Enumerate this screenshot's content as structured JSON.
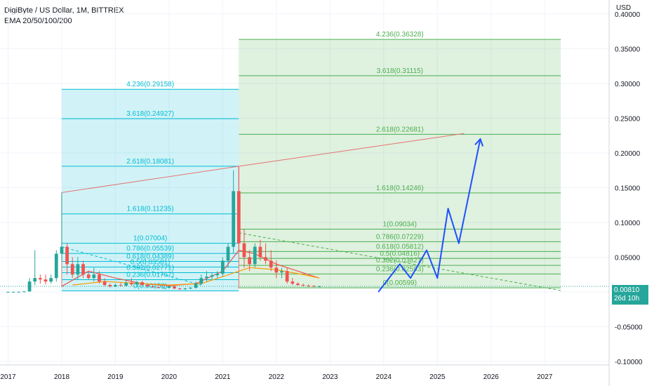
{
  "header": {
    "title": "DigiByte / US Dollar, 1M, BITTREX",
    "indicator": "EMA 20/50/100/200"
  },
  "axis": {
    "currency": "USD"
  },
  "price_badge": {
    "price": "0.00810",
    "countdown": "26d 10h"
  },
  "colors": {
    "bull": "#26a69a",
    "bear": "#ef5350",
    "fib_cyan": "#00bcd4",
    "fib_green": "#4caf50",
    "trend_line": "#e57373",
    "drawing_blue": "#1e50ff",
    "ema_orange": "#ff7043"
  },
  "chart_data": {
    "type": "candlestick",
    "title": "DigiByte / US Dollar, 1M, BITTREX",
    "ylabel": "USD",
    "ylim": [
      -0.105,
      0.42
    ],
    "xlim": [
      2016.85,
      2028.2
    ],
    "x_ticks": [
      "2017",
      "2018",
      "2019",
      "2020",
      "2021",
      "2022",
      "2023",
      "2024",
      "2025",
      "2026",
      "2027"
    ],
    "y_ticks": [
      "0.40000",
      "0.35000",
      "0.30000",
      "0.25000",
      "0.20000",
      "0.15000",
      "0.10000",
      "0.05000",
      "0.00000",
      "-0.05000",
      "-0.10000"
    ],
    "candles": [
      {
        "t": 2017.0,
        "o": 0.0002,
        "h": 0.0003,
        "l": 0.0001,
        "c": 0.0002
      },
      {
        "t": 2017.1,
        "o": 0.0002,
        "h": 0.0003,
        "l": 0.0001,
        "c": 0.0002
      },
      {
        "t": 2017.2,
        "o": 0.0002,
        "h": 0.0004,
        "l": 0.0001,
        "c": 0.0003
      },
      {
        "t": 2017.3,
        "o": 0.0003,
        "h": 0.0008,
        "l": 0.0002,
        "c": 0.0007
      },
      {
        "t": 2017.4,
        "o": 0.0007,
        "h": 0.02,
        "l": 0.0006,
        "c": 0.015
      },
      {
        "t": 2017.5,
        "o": 0.015,
        "h": 0.06,
        "l": 0.01,
        "c": 0.02
      },
      {
        "t": 2017.6,
        "o": 0.02,
        "h": 0.025,
        "l": 0.012,
        "c": 0.018
      },
      {
        "t": 2017.7,
        "o": 0.018,
        "h": 0.025,
        "l": 0.011,
        "c": 0.015
      },
      {
        "t": 2017.8,
        "o": 0.015,
        "h": 0.025,
        "l": 0.012,
        "c": 0.02
      },
      {
        "t": 2017.9,
        "o": 0.02,
        "h": 0.06,
        "l": 0.015,
        "c": 0.055
      },
      {
        "t": 2018.0,
        "o": 0.055,
        "h": 0.143,
        "l": 0.045,
        "c": 0.065
      },
      {
        "t": 2018.1,
        "o": 0.065,
        "h": 0.07,
        "l": 0.025,
        "c": 0.04
      },
      {
        "t": 2018.2,
        "o": 0.04,
        "h": 0.05,
        "l": 0.02,
        "c": 0.025
      },
      {
        "t": 2018.3,
        "o": 0.025,
        "h": 0.05,
        "l": 0.018,
        "c": 0.04
      },
      {
        "t": 2018.4,
        "o": 0.04,
        "h": 0.045,
        "l": 0.02,
        "c": 0.025
      },
      {
        "t": 2018.5,
        "o": 0.025,
        "h": 0.03,
        "l": 0.018,
        "c": 0.02
      },
      {
        "t": 2018.6,
        "o": 0.02,
        "h": 0.035,
        "l": 0.015,
        "c": 0.025
      },
      {
        "t": 2018.7,
        "o": 0.025,
        "h": 0.03,
        "l": 0.012,
        "c": 0.015
      },
      {
        "t": 2018.8,
        "o": 0.015,
        "h": 0.02,
        "l": 0.008,
        "c": 0.01
      },
      {
        "t": 2018.9,
        "o": 0.01,
        "h": 0.012,
        "l": 0.006,
        "c": 0.008
      },
      {
        "t": 2019.0,
        "o": 0.008,
        "h": 0.012,
        "l": 0.007,
        "c": 0.01
      },
      {
        "t": 2019.1,
        "o": 0.01,
        "h": 0.013,
        "l": 0.008,
        "c": 0.009
      },
      {
        "t": 2019.2,
        "o": 0.009,
        "h": 0.016,
        "l": 0.008,
        "c": 0.013
      },
      {
        "t": 2019.3,
        "o": 0.013,
        "h": 0.02,
        "l": 0.009,
        "c": 0.011
      },
      {
        "t": 2019.4,
        "o": 0.011,
        "h": 0.016,
        "l": 0.009,
        "c": 0.014
      },
      {
        "t": 2019.5,
        "o": 0.014,
        "h": 0.016,
        "l": 0.009,
        "c": 0.01
      },
      {
        "t": 2019.6,
        "o": 0.01,
        "h": 0.011,
        "l": 0.007,
        "c": 0.008
      },
      {
        "t": 2019.7,
        "o": 0.008,
        "h": 0.009,
        "l": 0.006,
        "c": 0.007
      },
      {
        "t": 2019.8,
        "o": 0.007,
        "h": 0.008,
        "l": 0.005,
        "c": 0.006
      },
      {
        "t": 2019.9,
        "o": 0.006,
        "h": 0.007,
        "l": 0.005,
        "c": 0.006
      },
      {
        "t": 2020.0,
        "o": 0.006,
        "h": 0.009,
        "l": 0.005,
        "c": 0.008
      },
      {
        "t": 2020.1,
        "o": 0.008,
        "h": 0.009,
        "l": 0.004,
        "c": 0.005
      },
      {
        "t": 2020.2,
        "o": 0.005,
        "h": 0.006,
        "l": 0.003,
        "c": 0.004
      },
      {
        "t": 2020.3,
        "o": 0.004,
        "h": 0.006,
        "l": 0.003,
        "c": 0.005
      },
      {
        "t": 2020.4,
        "o": 0.005,
        "h": 0.007,
        "l": 0.004,
        "c": 0.006
      },
      {
        "t": 2020.5,
        "o": 0.006,
        "h": 0.015,
        "l": 0.005,
        "c": 0.012
      },
      {
        "t": 2020.6,
        "o": 0.012,
        "h": 0.025,
        "l": 0.01,
        "c": 0.02
      },
      {
        "t": 2020.7,
        "o": 0.02,
        "h": 0.03,
        "l": 0.015,
        "c": 0.022
      },
      {
        "t": 2020.8,
        "o": 0.022,
        "h": 0.028,
        "l": 0.018,
        "c": 0.024
      },
      {
        "t": 2020.9,
        "o": 0.024,
        "h": 0.03,
        "l": 0.02,
        "c": 0.026
      },
      {
        "t": 2021.0,
        "o": 0.026,
        "h": 0.05,
        "l": 0.022,
        "c": 0.045
      },
      {
        "t": 2021.1,
        "o": 0.045,
        "h": 0.07,
        "l": 0.035,
        "c": 0.065
      },
      {
        "t": 2021.2,
        "o": 0.065,
        "h": 0.175,
        "l": 0.055,
        "c": 0.145
      },
      {
        "t": 2021.3,
        "o": 0.145,
        "h": 0.18,
        "l": 0.06,
        "c": 0.07
      },
      {
        "t": 2021.4,
        "o": 0.07,
        "h": 0.09,
        "l": 0.035,
        "c": 0.05
      },
      {
        "t": 2021.5,
        "o": 0.05,
        "h": 0.06,
        "l": 0.03,
        "c": 0.04
      },
      {
        "t": 2021.6,
        "o": 0.04,
        "h": 0.07,
        "l": 0.035,
        "c": 0.065
      },
      {
        "t": 2021.7,
        "o": 0.065,
        "h": 0.075,
        "l": 0.045,
        "c": 0.05
      },
      {
        "t": 2021.8,
        "o": 0.05,
        "h": 0.07,
        "l": 0.04,
        "c": 0.045
      },
      {
        "t": 2021.9,
        "o": 0.045,
        "h": 0.06,
        "l": 0.03,
        "c": 0.035
      },
      {
        "t": 2022.0,
        "o": 0.035,
        "h": 0.045,
        "l": 0.02,
        "c": 0.028
      },
      {
        "t": 2022.1,
        "o": 0.028,
        "h": 0.035,
        "l": 0.02,
        "c": 0.03
      },
      {
        "t": 2022.2,
        "o": 0.03,
        "h": 0.035,
        "l": 0.012,
        "c": 0.015
      },
      {
        "t": 2022.3,
        "o": 0.015,
        "h": 0.02,
        "l": 0.01,
        "c": 0.012
      },
      {
        "t": 2022.4,
        "o": 0.012,
        "h": 0.014,
        "l": 0.009,
        "c": 0.01
      },
      {
        "t": 2022.5,
        "o": 0.01,
        "h": 0.012,
        "l": 0.008,
        "c": 0.009
      },
      {
        "t": 2022.6,
        "o": 0.009,
        "h": 0.011,
        "l": 0.007,
        "c": 0.0085
      },
      {
        "t": 2022.7,
        "o": 0.0085,
        "h": 0.01,
        "l": 0.007,
        "c": 0.008
      },
      {
        "t": 2022.8,
        "o": 0.008,
        "h": 0.009,
        "l": 0.007,
        "c": 0.0081
      }
    ],
    "ema": [
      {
        "name": "EMA 20",
        "color": "#ef5350",
        "points": [
          [
            2018.0,
            0.008
          ],
          [
            2018.5,
            0.03
          ],
          [
            2019.0,
            0.02
          ],
          [
            2019.5,
            0.012
          ],
          [
            2020.0,
            0.009
          ],
          [
            2020.5,
            0.012
          ],
          [
            2021.0,
            0.03
          ],
          [
            2021.3,
            0.06
          ],
          [
            2021.6,
            0.055
          ],
          [
            2022.0,
            0.04
          ],
          [
            2022.4,
            0.03
          ],
          [
            2022.8,
            0.02
          ]
        ]
      },
      {
        "name": "EMA 50",
        "color": "#ff9800",
        "points": [
          [
            2018.2,
            0.01
          ],
          [
            2018.8,
            0.015
          ],
          [
            2019.5,
            0.012
          ],
          [
            2020.0,
            0.01
          ],
          [
            2020.6,
            0.012
          ],
          [
            2021.0,
            0.022
          ],
          [
            2021.5,
            0.035
          ],
          [
            2022.0,
            0.032
          ],
          [
            2022.5,
            0.025
          ],
          [
            2022.8,
            0.02
          ]
        ]
      }
    ],
    "fib_extension_1": {
      "color": "#00bcd4",
      "x_range": [
        2018.0,
        2021.3
      ],
      "levels": [
        {
          "label": "0(0.00158)",
          "value": 0.00158
        },
        {
          "label": "0.236(0.01767)",
          "value": 0.01767
        },
        {
          "label": "0.382(0.02771)",
          "value": 0.02771
        },
        {
          "label": "0.5(0.03581)",
          "value": 0.03581
        },
        {
          "label": "0.618(0.04389)",
          "value": 0.04389
        },
        {
          "label": "0.786(0.05539)",
          "value": 0.05539
        },
        {
          "label": "1(0.07004)",
          "value": 0.07004
        },
        {
          "label": "1.618(0.11235)",
          "value": 0.11235
        },
        {
          "label": "2.618(0.18081)",
          "value": 0.18081
        },
        {
          "label": "3.618(0.24927)",
          "value": 0.24927
        },
        {
          "label": "4.236(0.29158)",
          "value": 0.29158
        }
      ]
    },
    "fib_extension_2": {
      "color": "#4caf50",
      "x_range": [
        2021.3,
        2027.3
      ],
      "levels": [
        {
          "label": "0(0.00599)",
          "value": 0.00599
        },
        {
          "label": "0.236(0.02593)",
          "value": 0.02593
        },
        {
          "label": "0.382(0.03827)",
          "value": 0.03827
        },
        {
          "label": "0.5(0.04816)",
          "value": 0.04816
        },
        {
          "label": "0.618(0.05812)",
          "value": 0.05812
        },
        {
          "label": "0.786(0.07229)",
          "value": 0.07229
        },
        {
          "label": "1(0.09034)",
          "value": 0.09034
        },
        {
          "label": "1.618(0.14246)",
          "value": 0.14246
        },
        {
          "label": "2.618(0.22681)",
          "value": 0.22681
        },
        {
          "label": "3.618(0.31115)",
          "value": 0.31115
        },
        {
          "label": "4.236(0.36328)",
          "value": 0.36328
        }
      ]
    },
    "trend_lines": [
      {
        "color": "#e57373",
        "style": "solid",
        "points": [
          [
            2018.0,
            0.143
          ],
          [
            2021.3,
            0.18081
          ],
          [
            2025.5,
            0.228
          ]
        ]
      },
      {
        "color": "#e57373",
        "style": "solid",
        "points": [
          [
            2018.0,
            0.143
          ],
          [
            2018.0,
            0.007
          ]
        ]
      },
      {
        "color": "#e57373",
        "style": "solid",
        "points": [
          [
            2021.3,
            0.18081
          ],
          [
            2021.3,
            0.005
          ]
        ]
      },
      {
        "color": "#00bcd4",
        "style": "dashed",
        "points": [
          [
            2018.0,
            0.065
          ],
          [
            2020.6,
            0.01
          ]
        ]
      },
      {
        "color": "#4caf50",
        "style": "dashed",
        "points": [
          [
            2021.3,
            0.085
          ],
          [
            2027.3,
            0.002
          ]
        ]
      }
    ],
    "projection": {
      "color": "#1e50ff",
      "points": [
        [
          2023.9,
          0.0
        ],
        [
          2024.3,
          0.04
        ],
        [
          2024.5,
          0.02
        ],
        [
          2024.8,
          0.06
        ],
        [
          2025.0,
          0.02
        ],
        [
          2025.2,
          0.12
        ],
        [
          2025.4,
          0.07
        ],
        [
          2025.8,
          0.22
        ]
      ]
    }
  }
}
